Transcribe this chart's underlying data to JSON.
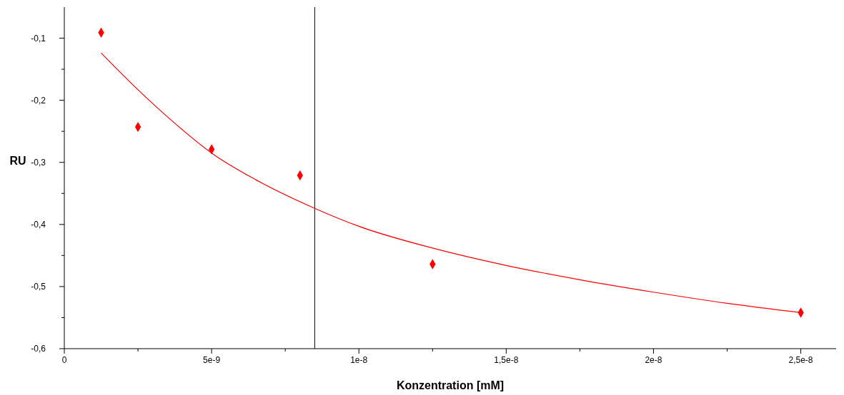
{
  "chart_data": {
    "type": "scatter",
    "xlabel": "Konzentration [mM]",
    "ylabel": "RU",
    "xlim": [
      0,
      2.62e-08
    ],
    "ylim": [
      -0.6,
      -0.05
    ],
    "xticks": [
      0,
      {
        "value": 2.5e-09,
        "label": null
      },
      {
        "value": 5e-09,
        "label": "5e-9"
      },
      {
        "value": 7.5e-09,
        "label": null
      },
      {
        "value": 1e-08,
        "label": "1e-8"
      },
      {
        "value": 1.25e-08,
        "label": null
      },
      {
        "value": 1.5e-08,
        "label": "1,5e-8"
      },
      {
        "value": 1.75e-08,
        "label": null
      },
      {
        "value": 2e-08,
        "label": "2e-8"
      },
      {
        "value": 2.25e-08,
        "label": null
      },
      {
        "value": 2.5e-08,
        "label": "2,5e-8"
      }
    ],
    "yticks": [
      {
        "value": -0.6,
        "label": "-0,6"
      },
      {
        "value": -0.55,
        "label": null
      },
      {
        "value": -0.5,
        "label": "-0,5"
      },
      {
        "value": -0.45,
        "label": null
      },
      {
        "value": -0.4,
        "label": "-0,4"
      },
      {
        "value": -0.35,
        "label": null
      },
      {
        "value": -0.3,
        "label": "-0,3"
      },
      {
        "value": -0.25,
        "label": null
      },
      {
        "value": -0.2,
        "label": "-0,2"
      },
      {
        "value": -0.15,
        "label": null
      },
      {
        "value": -0.1,
        "label": "-0,1"
      }
    ],
    "grid": false,
    "series": [
      {
        "color": "#ff0000",
        "marker": "diamond",
        "x": [
          1.25e-09,
          2.5e-09,
          5e-09,
          8e-09,
          1.25e-08,
          2.5e-08
        ],
        "values": [
          -0.091,
          -0.243,
          -0.279,
          -0.321,
          -0.464,
          -0.542
        ]
      },
      {
        "type": "line",
        "color": "#ff0000",
        "marker": "none",
        "line_style": "solid",
        "x": [
          1.25e-09,
          1.75e-09,
          2.5e-09,
          3.75e-09,
          5e-09,
          6.5e-09,
          8.5e-09,
          1e-08,
          1.25e-08,
          1.5e-08,
          1.75e-08,
          2e-08,
          2.25e-08,
          2.5e-08
        ],
        "values": [
          -0.124,
          -0.148,
          -0.183,
          -0.237,
          -0.285,
          -0.328,
          -0.374,
          -0.403,
          -0.438,
          -0.466,
          -0.489,
          -0.509,
          -0.527,
          -0.542
        ]
      }
    ],
    "ref_lines": [
      {
        "axis": "x",
        "value": 8.5e-09,
        "color": "#000000"
      }
    ]
  }
}
